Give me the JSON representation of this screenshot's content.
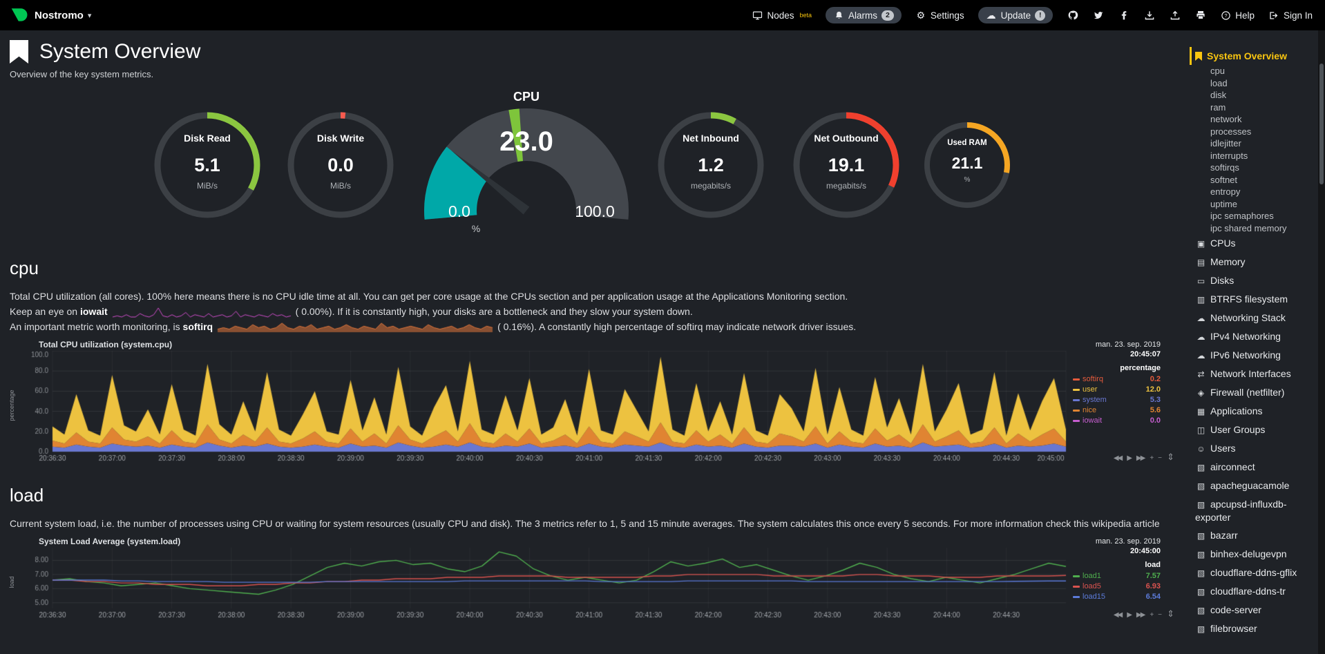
{
  "topbar": {
    "machine_name": "Nostromo",
    "nodes_label": "Nodes",
    "nodes_sup": "beta",
    "alarms_label": "Alarms",
    "alarms_badge": "2",
    "settings_label": "Settings",
    "update_label": "Update",
    "update_badge": "!",
    "help_label": "Help",
    "signin_label": "Sign In"
  },
  "ui": {
    "caret_glyph": "▾",
    "gear_glyph": "⚙",
    "cloud_glyph": "☁",
    "resize_glyph": "⇕"
  },
  "page": {
    "title": "System Overview",
    "subtitle": "Overview of the key system metrics."
  },
  "gauges": [
    {
      "id": "disk-read",
      "title": "Disk Read",
      "value": "5.1",
      "unit": "MiB/s",
      "color": "#8BC640",
      "fraction": 0.33,
      "type": "ring"
    },
    {
      "id": "disk-write",
      "title": "Disk Write",
      "value": "0.0",
      "unit": "MiB/s",
      "color": "#F75B4F",
      "fraction": 0.015,
      "type": "ring"
    },
    {
      "id": "cpu",
      "title": "CPU",
      "value": "23.0",
      "min": "0.0",
      "max": "100.0",
      "unit": "%",
      "color": "#00A8A8",
      "fraction": 0.23,
      "type": "meter"
    },
    {
      "id": "net-inbound",
      "title": "Net Inbound",
      "value": "1.2",
      "unit": "megabits/s",
      "color": "#8BC640",
      "fraction": 0.08,
      "type": "ring"
    },
    {
      "id": "net-outbound",
      "title": "Net Outbound",
      "value": "19.1",
      "unit": "megabits/s",
      "color": "#F0402E",
      "fraction": 0.32,
      "type": "ring"
    },
    {
      "id": "used-ram",
      "title": "Used RAM",
      "value": "21.1",
      "unit": "%",
      "color": "#F5A623",
      "fraction": 0.28,
      "type": "ring",
      "small": true
    }
  ],
  "cpu_section": {
    "heading": "cpu",
    "para1": "Total CPU utilization (all cores). 100% here means there is no CPU idle time at all. You can get per core usage at the CPUs section and per application usage at the Applications Monitoring section.",
    "line2_pre": "Keep an eye on ",
    "line2_bold": "iowait",
    "line2_post": "( 0.00%). If it is constantly high, your disks are a bottleneck and they slow your system down.",
    "line3_pre": "An important metric worth monitoring, is ",
    "line3_bold": "softirq",
    "line3_post": "( 0.16%). A constantly high percentage of softirq may indicate network driver issues.",
    "iowait_spark": [
      0,
      1,
      0,
      2,
      0,
      0,
      3,
      1,
      0,
      2,
      8,
      1,
      0,
      2,
      0,
      1,
      4,
      0,
      2,
      1,
      0,
      3,
      0,
      1,
      2,
      0,
      1,
      5,
      0,
      2,
      1,
      0,
      2,
      1,
      0,
      3,
      1,
      2,
      0,
      1
    ],
    "softirq_spark": [
      2,
      3,
      2,
      4,
      3,
      2,
      5,
      3,
      4,
      2,
      3,
      6,
      3,
      2,
      4,
      3,
      5,
      2,
      3,
      4,
      2,
      3,
      5,
      3,
      2,
      4,
      3,
      2,
      6,
      3,
      4,
      2,
      3,
      4,
      3,
      2,
      5,
      3,
      2,
      3,
      4,
      2,
      3,
      5,
      3,
      2,
      4,
      3
    ],
    "iowait_spark_color": "#CF4ECB",
    "softirq_spark_color": "#E0763C"
  },
  "load_section": {
    "heading": "load",
    "para_pre": "Current system load, i.e. the number of processes using CPU or waiting for system resources (usually CPU and disk). The 3 metrics refer to 1, 5 and 15 minute averages. The system calculates this once every 5 seconds. For more information check this ",
    "link_text": "wikipedia article"
  },
  "chart_data": [
    {
      "id": "cpu",
      "type": "area",
      "stacked": true,
      "title": "Total CPU utilization (system.cpu)",
      "date": "man. 23. sep. 2019",
      "time": "20:45:07",
      "unit": "percentage",
      "ylabel": "percentage",
      "ylim": [
        0,
        100
      ],
      "yticks": [
        {
          "label": "100.0",
          "value": 100
        },
        {
          "label": "80.0",
          "value": 80
        },
        {
          "label": "60.0",
          "value": 60
        },
        {
          "label": "40.0",
          "value": 40
        },
        {
          "label": "20.0",
          "value": 20
        },
        {
          "label": "0.0",
          "value": 0
        }
      ],
      "x_intervals": 17,
      "xticks": [
        "20:36:30",
        "20:37:00",
        "20:37:30",
        "20:38:00",
        "20:38:30",
        "20:39:00",
        "20:39:30",
        "20:40:00",
        "20:40:30",
        "20:41:00",
        "20:41:30",
        "20:42:00",
        "20:42:30",
        "20:43:00",
        "20:43:30",
        "20:44:00",
        "20:44:30",
        "20:45:00"
      ],
      "legend": [
        {
          "name": "softirq",
          "value": "0.2",
          "color": "#E55B3C"
        },
        {
          "name": "user",
          "value": "12.0",
          "color": "#EDC240"
        },
        {
          "name": "system",
          "value": "5.3",
          "color": "#6977D1"
        },
        {
          "name": "nice",
          "value": "5.6",
          "color": "#E08432"
        },
        {
          "name": "iowait",
          "value": "0.0",
          "color": "#C65ECF"
        }
      ],
      "series": [
        {
          "name": "system",
          "color": "#6977D1",
          "values": [
            5,
            4,
            7,
            5,
            4,
            8,
            6,
            5,
            6,
            4,
            7,
            5,
            4,
            9,
            6,
            4,
            6,
            5,
            8,
            5,
            4,
            5,
            7,
            5,
            4,
            8,
            5,
            6,
            4,
            9,
            6,
            4,
            5,
            7,
            5,
            9,
            5,
            4,
            6,
            5,
            8,
            4,
            5,
            6,
            4,
            8,
            5,
            4,
            7,
            6,
            5,
            9,
            5,
            4,
            7,
            5,
            6,
            4,
            8,
            5,
            4,
            6,
            6,
            5,
            8,
            4,
            7,
            5,
            4,
            8,
            5,
            6,
            4,
            9,
            5,
            6,
            7,
            4,
            5,
            8,
            4,
            6,
            5,
            6,
            8,
            5
          ]
        },
        {
          "name": "nice",
          "color": "#E08432",
          "values": [
            6,
            4,
            12,
            5,
            4,
            16,
            6,
            5,
            9,
            4,
            14,
            5,
            4,
            18,
            6,
            4,
            11,
            5,
            16,
            5,
            4,
            8,
            13,
            5,
            4,
            15,
            5,
            12,
            4,
            17,
            6,
            4,
            10,
            14,
            5,
            19,
            5,
            4,
            12,
            5,
            15,
            4,
            6,
            11,
            4,
            17,
            5,
            4,
            13,
            9,
            5,
            20,
            5,
            4,
            14,
            5,
            11,
            4,
            16,
            5,
            4,
            12,
            9,
            5,
            17,
            4,
            13,
            5,
            4,
            15,
            6,
            11,
            4,
            18,
            5,
            9,
            14,
            4,
            5,
            16,
            4,
            12,
            5,
            11,
            15,
            5
          ]
        },
        {
          "name": "user",
          "color": "#EDC240",
          "values": [
            14,
            9,
            38,
            11,
            8,
            52,
            14,
            10,
            27,
            9,
            46,
            12,
            8,
            60,
            15,
            9,
            33,
            10,
            55,
            12,
            8,
            24,
            40,
            10,
            9,
            48,
            11,
            36,
            9,
            58,
            13,
            8,
            29,
            45,
            10,
            62,
            12,
            9,
            38,
            11,
            50,
            9,
            13,
            35,
            8,
            57,
            11,
            9,
            42,
            26,
            10,
            65,
            12,
            8,
            47,
            10,
            33,
            9,
            54,
            11,
            8,
            39,
            28,
            10,
            58,
            9,
            44,
            12,
            8,
            51,
            13,
            36,
            9,
            60,
            10,
            27,
            47,
            9,
            12,
            55,
            8,
            40,
            11,
            33,
            50,
            12
          ]
        }
      ],
      "toolbox": [
        "rewind",
        "play",
        "forward",
        "zoom-in",
        "zoom-out"
      ]
    },
    {
      "id": "load",
      "type": "line",
      "stacked": false,
      "title": "System Load Average (system.load)",
      "date": "man. 23. sep. 2019",
      "time": "20:45:00",
      "unit": "load",
      "ylabel": "load",
      "ylim": [
        4.6,
        8.9
      ],
      "yticks": [
        {
          "label": "8.00",
          "value": 8
        },
        {
          "label": "7.00",
          "value": 7
        },
        {
          "label": "6.00",
          "value": 6
        },
        {
          "label": "5.00",
          "value": 5
        }
      ],
      "x_intervals": 17,
      "xticks": [
        "20:36:30",
        "20:37:00",
        "20:37:30",
        "20:38:00",
        "20:38:30",
        "20:39:00",
        "20:39:30",
        "20:40:00",
        "20:40:30",
        "20:41:00",
        "20:41:30",
        "20:42:00",
        "20:42:30",
        "20:43:00",
        "20:43:30",
        "20:44:00",
        "20:44:30"
      ],
      "legend": [
        {
          "name": "load1",
          "value": "7.57",
          "color": "#4FAE4E"
        },
        {
          "name": "load5",
          "value": "6.93",
          "color": "#D9534F"
        },
        {
          "name": "load15",
          "value": "6.54",
          "color": "#5C7BD9"
        }
      ],
      "series": [
        {
          "name": "load1",
          "color": "#4FAE4E",
          "values": [
            6.6,
            6.7,
            6.5,
            6.4,
            6.2,
            6.3,
            6.4,
            6.2,
            6.0,
            5.9,
            5.8,
            5.7,
            5.6,
            5.9,
            6.3,
            6.9,
            7.5,
            7.8,
            7.6,
            7.9,
            8.0,
            7.7,
            7.8,
            7.4,
            7.2,
            7.6,
            8.6,
            8.3,
            7.4,
            6.9,
            6.6,
            6.8,
            6.6,
            6.4,
            6.6,
            7.2,
            7.9,
            7.6,
            7.8,
            8.1,
            7.5,
            7.7,
            7.3,
            6.9,
            6.6,
            6.9,
            7.3,
            7.8,
            7.5,
            7.0,
            6.7,
            6.5,
            6.8,
            6.6,
            6.4,
            6.7,
            7.0,
            7.4,
            7.8,
            7.57
          ]
        },
        {
          "name": "load5",
          "color": "#D9534F",
          "values": [
            6.6,
            6.6,
            6.5,
            6.5,
            6.4,
            6.4,
            6.3,
            6.3,
            6.3,
            6.2,
            6.2,
            6.2,
            6.3,
            6.3,
            6.4,
            6.4,
            6.5,
            6.5,
            6.6,
            6.6,
            6.7,
            6.7,
            6.7,
            6.8,
            6.8,
            6.8,
            6.9,
            6.9,
            6.9,
            6.9,
            6.8,
            6.8,
            6.8,
            6.8,
            6.8,
            6.9,
            6.9,
            7.0,
            7.0,
            7.0,
            7.0,
            7.0,
            6.9,
            6.9,
            6.9,
            6.9,
            6.9,
            7.0,
            7.0,
            6.9,
            6.9,
            6.9,
            6.8,
            6.8,
            6.8,
            6.9,
            6.9,
            6.9,
            6.9,
            6.93
          ]
        },
        {
          "name": "load15",
          "color": "#5C7BD9",
          "values": [
            6.6,
            6.6,
            6.6,
            6.6,
            6.55,
            6.55,
            6.5,
            6.5,
            6.5,
            6.5,
            6.45,
            6.45,
            6.45,
            6.45,
            6.45,
            6.45,
            6.5,
            6.5,
            6.5,
            6.5,
            6.5,
            6.5,
            6.5,
            6.5,
            6.55,
            6.55,
            6.55,
            6.55,
            6.55,
            6.55,
            6.55,
            6.55,
            6.5,
            6.5,
            6.5,
            6.5,
            6.5,
            6.55,
            6.55,
            6.55,
            6.55,
            6.55,
            6.55,
            6.55,
            6.5,
            6.5,
            6.5,
            6.5,
            6.5,
            6.5,
            6.5,
            6.5,
            6.5,
            6.5,
            6.5,
            6.5,
            6.52,
            6.53,
            6.54,
            6.54
          ]
        }
      ],
      "toolbox": [
        "rewind",
        "play",
        "forward",
        "zoom-in",
        "zoom-out"
      ]
    }
  ],
  "sidebar": {
    "active_color": "#f9c510",
    "sections": [
      {
        "label": "System Overview",
        "icon": "bookmark",
        "active": true,
        "submenu": [
          "cpu",
          "load",
          "disk",
          "ram",
          "network",
          "processes",
          "idlejitter",
          "interrupts",
          "softirqs",
          "softnet",
          "entropy",
          "uptime",
          "ipc semaphores",
          "ipc shared memory"
        ]
      },
      {
        "label": "CPUs",
        "icon": "cpu"
      },
      {
        "label": "Memory",
        "icon": "memory"
      },
      {
        "label": "Disks",
        "icon": "disk"
      },
      {
        "label": "BTRFS filesystem",
        "icon": "folder"
      },
      {
        "label": "Networking Stack",
        "icon": "cloud"
      },
      {
        "label": "IPv4 Networking",
        "icon": "cloud"
      },
      {
        "label": "IPv6 Networking",
        "icon": "cloud"
      },
      {
        "label": "Network Interfaces",
        "icon": "interfaces"
      },
      {
        "label": "Firewall (netfilter)",
        "icon": "shield"
      },
      {
        "label": "Applications",
        "icon": "apps"
      },
      {
        "label": "User Groups",
        "icon": "user-groups"
      },
      {
        "label": "Users",
        "icon": "user"
      },
      {
        "label": "airconnect",
        "icon": "cube"
      },
      {
        "label": "apacheguacamole",
        "icon": "cube"
      },
      {
        "label": "apcupsd-influxdb-exporter",
        "icon": "cube"
      },
      {
        "label": "bazarr",
        "icon": "cube"
      },
      {
        "label": "binhex-delugevpn",
        "icon": "cube"
      },
      {
        "label": "cloudflare-ddns-gflix",
        "icon": "cube"
      },
      {
        "label": "cloudflare-ddns-tr",
        "icon": "cube"
      },
      {
        "label": "code-server",
        "icon": "cube"
      },
      {
        "label": "filebrowser",
        "icon": "cube"
      }
    ]
  }
}
